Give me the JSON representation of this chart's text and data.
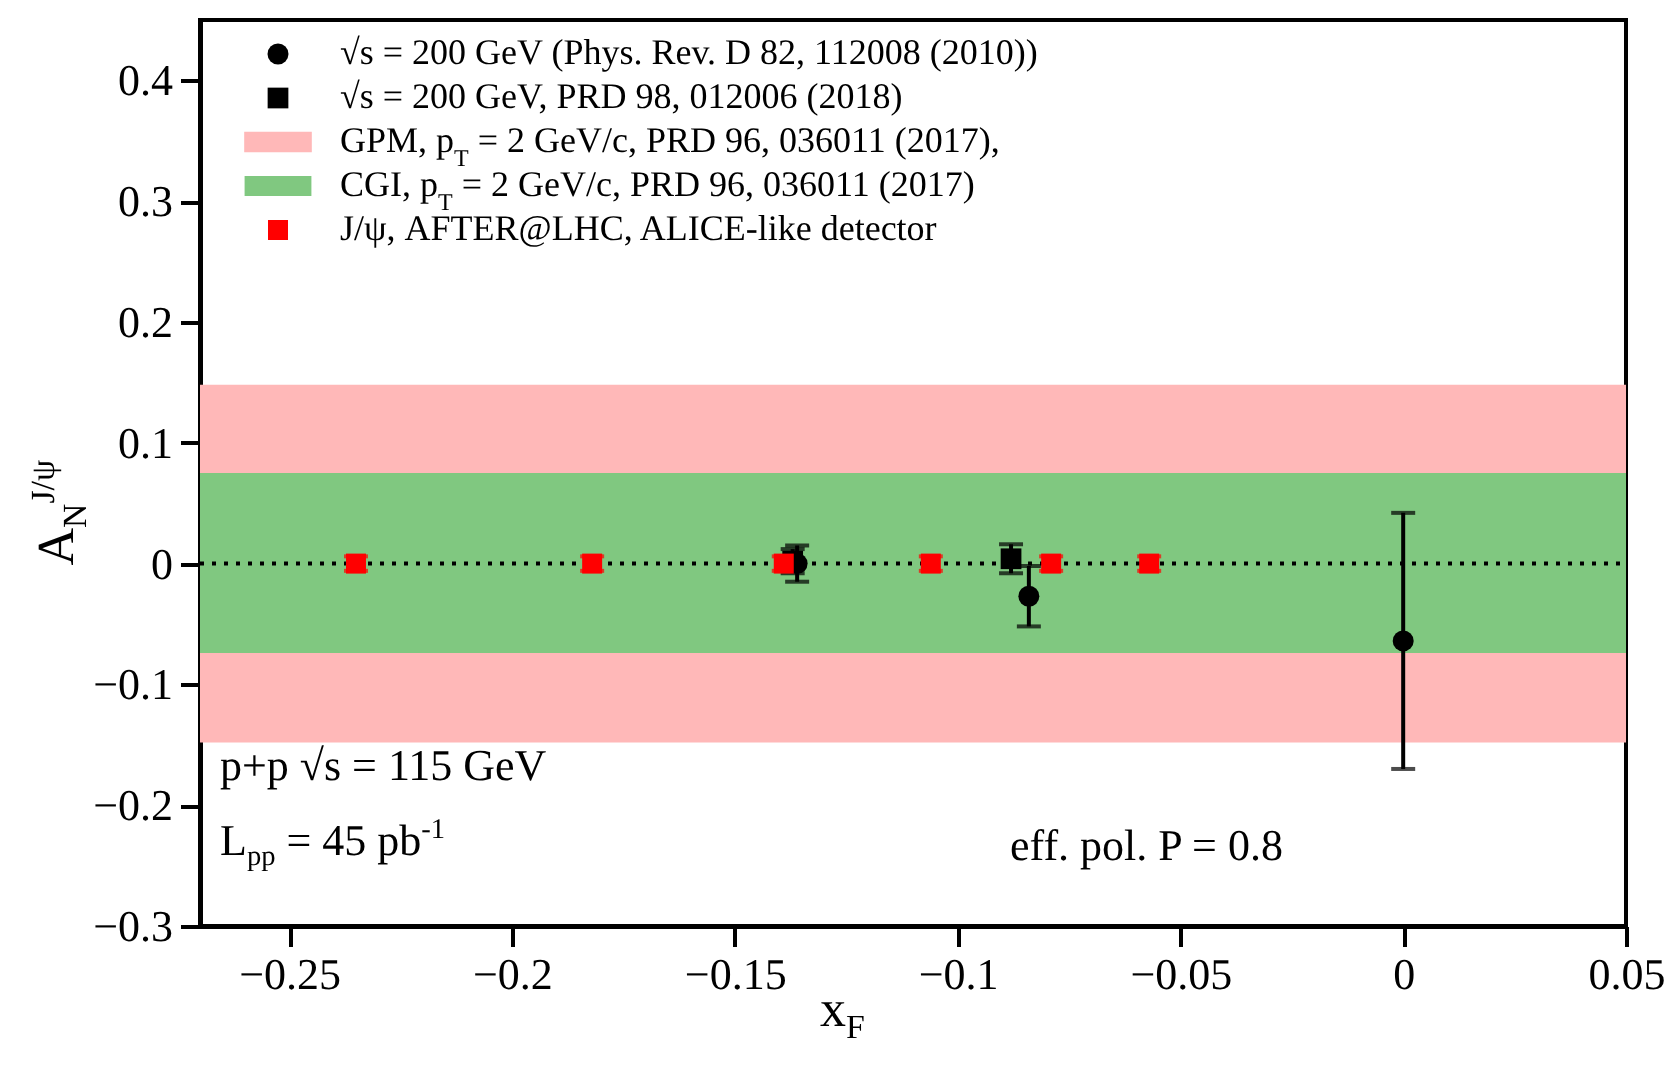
{
  "chart_data": {
    "type": "scatter",
    "xlabel": "x$_{F}$",
    "ylabel": "A$_{N}$$^{J/ψ}$",
    "xlim": [
      -0.27,
      0.05
    ],
    "xticks": [
      -0.25,
      -0.2,
      -0.15,
      -0.1,
      -0.05,
      0,
      0.05
    ],
    "ylim": [
      -0.3,
      0.45
    ],
    "yticks": [
      -0.3,
      -0.2,
      -0.1,
      0,
      0.1,
      0.2,
      0.3,
      0.4
    ],
    "grid": false,
    "legend": "top",
    "series": [
      {
        "name": "√s = 200 GeV (Phys. Rev. D 82, 112008 (2010))",
        "marker": "circle",
        "color": "#000000",
        "x": [
          -0.136,
          -0.084,
          0.0
        ],
        "values": [
          0.0,
          -0.027,
          -0.064
        ],
        "errors": [
          0.015,
          0.025,
          0.106
        ]
      },
      {
        "name": "√s = 200 GeV, PRD 98, 012006 (2018)",
        "marker": "square",
        "color": "#000000",
        "x": [
          -0.137,
          -0.088
        ],
        "values": [
          0.002,
          0.004
        ],
        "errors": [
          0.01,
          0.012
        ]
      },
      {
        "name": "J/ψ, AFTER@LHC, ALICE-like detector",
        "marker": "square",
        "color": "#ff0000",
        "x": [
          -0.235,
          -0.182,
          -0.139,
          -0.106,
          -0.079,
          -0.057
        ],
        "values": [
          0,
          0,
          0,
          0,
          0,
          0
        ],
        "errors": [
          0.006,
          0.006,
          0.006,
          0.006,
          0.006,
          0.006
        ]
      }
    ],
    "bands": [
      {
        "axis": "y",
        "from": -0.148,
        "to": 0.148,
        "label": "GPM, p$_{T}$ = 2 GeV/c, PRD 96, 036011 (2017),",
        "color": "#ffb8b8"
      },
      {
        "axis": "y",
        "from": -0.074,
        "to": 0.075,
        "label": "CGI, p$_{T}$ = 2 GeV/c, PRD 96, 036011 (2017)",
        "color": "#80c880"
      }
    ],
    "ref_lines": [
      {
        "axis": "y",
        "value": 0,
        "line_style": "dotted",
        "color": "#000000"
      }
    ],
    "annotations": [
      "p+p  √s = 115 GeV",
      "L$_{pp}$ = 45 pb$^{-1}$",
      "eff. pol. P = 0.8"
    ]
  }
}
